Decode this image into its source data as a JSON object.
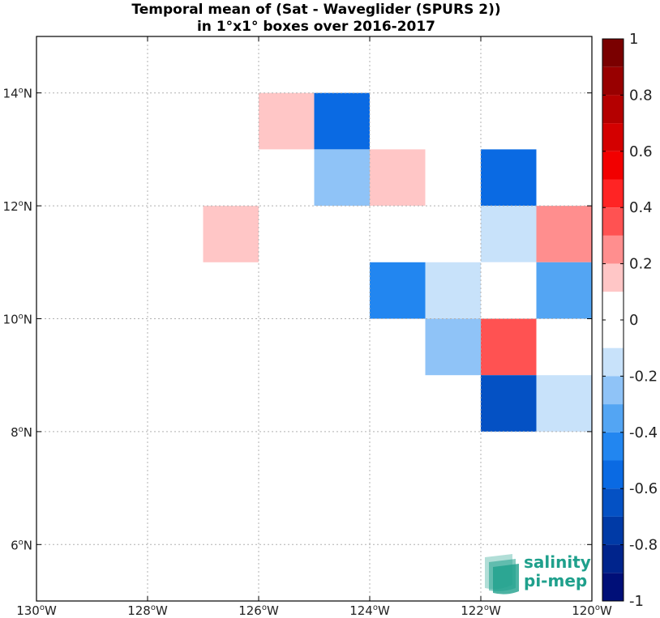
{
  "chart_data": {
    "type": "heatmap",
    "title_line1": "Temporal mean of (Sat - Waveglider (SPURS 2))",
    "title_line2": "in 1°x1° boxes over 2016-2017",
    "xlim": [
      -130,
      -120
    ],
    "ylim": [
      5,
      15
    ],
    "xticks": [
      {
        "value": -130,
        "label": "130",
        "suffix": "W"
      },
      {
        "value": -128,
        "label": "128",
        "suffix": "W"
      },
      {
        "value": -126,
        "label": "126",
        "suffix": "W"
      },
      {
        "value": -124,
        "label": "124",
        "suffix": "W"
      },
      {
        "value": -122,
        "label": "122",
        "suffix": "W"
      },
      {
        "value": -120,
        "label": "120",
        "suffix": "W"
      }
    ],
    "yticks": [
      {
        "value": 6,
        "label": "6",
        "suffix": "N"
      },
      {
        "value": 8,
        "label": "8",
        "suffix": "N"
      },
      {
        "value": 10,
        "label": "10",
        "suffix": "N"
      },
      {
        "value": 12,
        "label": "12",
        "suffix": "N"
      },
      {
        "value": 14,
        "label": "14",
        "suffix": "N"
      }
    ],
    "grid": true,
    "cells": [
      {
        "lon": -125,
        "lat": 13,
        "value": 0.15
      },
      {
        "lon": -124,
        "lat": 13,
        "value": -0.55
      },
      {
        "lon": -124,
        "lat": 12,
        "value": -0.25
      },
      {
        "lon": -123,
        "lat": 12,
        "value": 0.15
      },
      {
        "lon": -121,
        "lat": 12,
        "value": -0.55
      },
      {
        "lon": -126,
        "lat": 11,
        "value": 0.15
      },
      {
        "lon": -121,
        "lat": 11,
        "value": -0.15
      },
      {
        "lon": -120,
        "lat": 11,
        "value": 0.25
      },
      {
        "lon": -123,
        "lat": 10,
        "value": -0.45
      },
      {
        "lon": -122,
        "lat": 10,
        "value": -0.15
      },
      {
        "lon": -121,
        "lat": 10,
        "value": 0.0
      },
      {
        "lon": -120,
        "lat": 10,
        "value": -0.35
      },
      {
        "lon": -122,
        "lat": 9,
        "value": -0.25
      },
      {
        "lon": -121,
        "lat": 9,
        "value": 0.35
      },
      {
        "lon": -121,
        "lat": 8,
        "value": -0.65
      },
      {
        "lon": -120,
        "lat": 8,
        "value": -0.15
      }
    ],
    "colorbar": {
      "range": [
        -1,
        1
      ],
      "ticks": [
        {
          "value": 1,
          "label": "1"
        },
        {
          "value": 0.8,
          "label": "0.8"
        },
        {
          "value": 0.6,
          "label": "0.6"
        },
        {
          "value": 0.4,
          "label": "0.4"
        },
        {
          "value": 0.2,
          "label": "0.2"
        },
        {
          "value": 0,
          "label": "0"
        },
        {
          "value": -0.2,
          "label": "-0.2"
        },
        {
          "value": -0.4,
          "label": "-0.4"
        },
        {
          "value": -0.6,
          "label": "-0.6"
        },
        {
          "value": -0.8,
          "label": "-0.8"
        },
        {
          "value": -1,
          "label": "-1"
        }
      ],
      "bins": [
        {
          "from": 0.9,
          "to": 1.0,
          "color": "#7a0000"
        },
        {
          "from": 0.8,
          "to": 0.9,
          "color": "#980000"
        },
        {
          "from": 0.7,
          "to": 0.8,
          "color": "#b40000"
        },
        {
          "from": 0.6,
          "to": 0.7,
          "color": "#d40000"
        },
        {
          "from": 0.5,
          "to": 0.6,
          "color": "#f20000"
        },
        {
          "from": 0.4,
          "to": 0.5,
          "color": "#ff2424"
        },
        {
          "from": 0.3,
          "to": 0.4,
          "color": "#ff5252"
        },
        {
          "from": 0.2,
          "to": 0.3,
          "color": "#ff8e8e"
        },
        {
          "from": 0.1,
          "to": 0.2,
          "color": "#ffc6c6"
        },
        {
          "from": -0.1,
          "to": 0.1,
          "color": "#ffffff"
        },
        {
          "from": -0.2,
          "to": -0.1,
          "color": "#c8e2fa"
        },
        {
          "from": -0.3,
          "to": -0.2,
          "color": "#8fc3f7"
        },
        {
          "from": -0.4,
          "to": -0.3,
          "color": "#53a5f3"
        },
        {
          "from": -0.5,
          "to": -0.4,
          "color": "#2286f0"
        },
        {
          "from": -0.6,
          "to": -0.5,
          "color": "#0a6ae3"
        },
        {
          "from": -0.7,
          "to": -0.6,
          "color": "#0451c4"
        },
        {
          "from": -0.8,
          "to": -0.7,
          "color": "#003aa6"
        },
        {
          "from": -0.9,
          "to": -0.8,
          "color": "#00248c"
        },
        {
          "from": -1.0,
          "to": -0.9,
          "color": "#000f78"
        }
      ]
    }
  },
  "logo": {
    "line1": "salinity",
    "line2": "pi-mep",
    "color": "#1fa08c"
  }
}
